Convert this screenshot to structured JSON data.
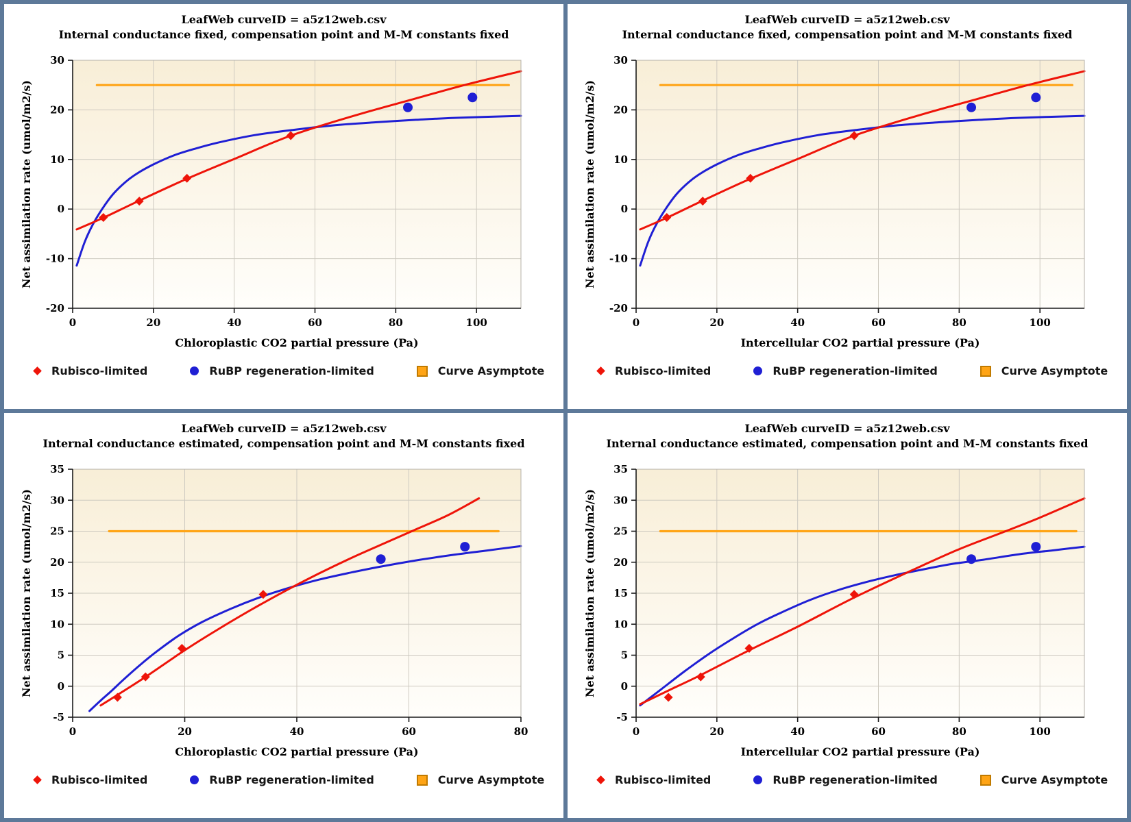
{
  "colors": {
    "red": "#ee1409",
    "blue": "#1f1fd4",
    "orange": "#ffa415",
    "orange_border": "#c07a00",
    "grid": "#cdc9c0",
    "plot_border": "#b4b0a8",
    "axis": "#1a1a1a",
    "bg_top": "#f8eed7",
    "bg_bottom": "#fffefb",
    "frame": "#5d7999"
  },
  "legend": {
    "items": [
      {
        "label": "Rubisco-limited",
        "marker": "diamond",
        "color_key": "red"
      },
      {
        "label": "RuBP regeneration-limited",
        "marker": "circle",
        "color_key": "blue"
      },
      {
        "label": "Curve Asymptote",
        "marker": "square",
        "color_key": "orange"
      }
    ]
  },
  "chart_data": [
    {
      "position": "top-left",
      "type": "line",
      "title": "LeafWeb curveID = a5z12web.csv",
      "subtitle": "Internal conductance fixed, compensation point and M-M constants fixed",
      "xlabel": "Chloroplastic CO2 partial pressure (Pa)",
      "ylabel": "Net assimilation rate (umol/m2/s)",
      "xlim": [
        0,
        111
      ],
      "ylim": [
        -20,
        30
      ],
      "xticks": [
        0,
        20,
        40,
        60,
        80,
        100
      ],
      "yticks": [
        -20,
        -10,
        0,
        10,
        20,
        30
      ],
      "grid": true,
      "legend_position": "bottom-left",
      "asymptote": {
        "y": 25,
        "x_start": 6,
        "x_end": 108
      },
      "curves": [
        {
          "name": "RuBP regeneration-limited model curve",
          "color_key": "blue",
          "points": [
            [
              1,
              -11.4
            ],
            [
              3,
              -6.6
            ],
            [
              5,
              -3.1
            ],
            [
              7.3,
              0
            ],
            [
              10,
              3
            ],
            [
              13,
              5.4
            ],
            [
              16,
              7.2
            ],
            [
              20,
              9
            ],
            [
              25,
              10.8
            ],
            [
              30,
              12.1
            ],
            [
              36,
              13.4
            ],
            [
              45,
              14.9
            ],
            [
              55,
              16
            ],
            [
              65,
              16.9
            ],
            [
              75,
              17.5
            ],
            [
              85,
              18
            ],
            [
              95,
              18.4
            ],
            [
              111,
              18.8
            ]
          ]
        },
        {
          "name": "Rubisco-limited model curve",
          "color_key": "red",
          "points": [
            [
              1,
              -4.1
            ],
            [
              7.5,
              -1.8
            ],
            [
              16,
              1.5
            ],
            [
              28,
              6
            ],
            [
              40,
              10.1
            ],
            [
              54,
              14.8
            ],
            [
              70,
              18.9
            ],
            [
              85,
              22.3
            ],
            [
              97,
              25
            ],
            [
              111,
              27.8
            ]
          ]
        }
      ],
      "scatter": [
        {
          "name": "Rubisco-limited",
          "marker": "diamond",
          "color_key": "red",
          "points": [
            [
              7.6,
              -1.7
            ],
            [
              16.5,
              1.6
            ],
            [
              28.3,
              6.2
            ],
            [
              54,
              14.8
            ]
          ]
        },
        {
          "name": "RuBP regeneration-limited",
          "marker": "circle",
          "color_key": "blue",
          "points": [
            [
              83,
              20.5
            ],
            [
              99,
              22.5
            ]
          ]
        }
      ]
    },
    {
      "position": "top-right",
      "type": "line",
      "title": "LeafWeb curveID = a5z12web.csv",
      "subtitle": "Internal conductance fixed, compensation point and M-M constants fixed",
      "xlabel": "Intercellular CO2 partial pressure (Pa)",
      "ylabel": "Net assimilation rate (umol/m2/s)",
      "xlim": [
        0,
        111
      ],
      "ylim": [
        -20,
        30
      ],
      "xticks": [
        0,
        20,
        40,
        60,
        80,
        100
      ],
      "yticks": [
        -20,
        -10,
        0,
        10,
        20,
        30
      ],
      "grid": true,
      "legend_position": "bottom-left",
      "asymptote": {
        "y": 25,
        "x_start": 6,
        "x_end": 108
      },
      "curves": [
        {
          "name": "RuBP regeneration-limited model curve",
          "color_key": "blue",
          "points": [
            [
              1,
              -11.4
            ],
            [
              3,
              -6.6
            ],
            [
              5,
              -3.1
            ],
            [
              7.3,
              0
            ],
            [
              10,
              3
            ],
            [
              13,
              5.4
            ],
            [
              16,
              7.2
            ],
            [
              20,
              9
            ],
            [
              25,
              10.8
            ],
            [
              30,
              12.1
            ],
            [
              36,
              13.4
            ],
            [
              45,
              14.9
            ],
            [
              55,
              16
            ],
            [
              65,
              16.9
            ],
            [
              75,
              17.5
            ],
            [
              85,
              18
            ],
            [
              95,
              18.4
            ],
            [
              111,
              18.8
            ]
          ]
        },
        {
          "name": "Rubisco-limited model curve",
          "color_key": "red",
          "points": [
            [
              1,
              -4.1
            ],
            [
              7.5,
              -1.8
            ],
            [
              16,
              1.5
            ],
            [
              28,
              6
            ],
            [
              40,
              10.1
            ],
            [
              54,
              14.8
            ],
            [
              70,
              18.9
            ],
            [
              85,
              22.3
            ],
            [
              97,
              25
            ],
            [
              111,
              27.8
            ]
          ]
        }
      ],
      "scatter": [
        {
          "name": "Rubisco-limited",
          "marker": "diamond",
          "color_key": "red",
          "points": [
            [
              7.6,
              -1.7
            ],
            [
              16.5,
              1.6
            ],
            [
              28.3,
              6.2
            ],
            [
              54,
              14.8
            ]
          ]
        },
        {
          "name": "RuBP regeneration-limited",
          "marker": "circle",
          "color_key": "blue",
          "points": [
            [
              83,
              20.5
            ],
            [
              99,
              22.5
            ]
          ]
        }
      ]
    },
    {
      "position": "bottom-left",
      "type": "line",
      "title": "LeafWeb curveID = a5z12web.csv",
      "subtitle": "Internal conductance estimated, compensation point and M-M constants fixed",
      "xlabel": "Chloroplastic CO2 partial pressure (Pa)",
      "ylabel": "Net assimilation rate (umol/m2/s)",
      "xlim": [
        0,
        80
      ],
      "ylim": [
        -5,
        35
      ],
      "xticks": [
        0,
        20,
        40,
        60,
        80
      ],
      "yticks": [
        -5,
        0,
        5,
        10,
        15,
        20,
        25,
        30,
        35
      ],
      "grid": true,
      "legend_position": "bottom-left",
      "asymptote": {
        "y": 25,
        "x_start": 6.5,
        "x_end": 76
      },
      "curves": [
        {
          "name": "RuBP regeneration-limited model curve",
          "color_key": "blue",
          "points": [
            [
              3,
              -4
            ],
            [
              5,
              -2.3
            ],
            [
              7,
              -0.7
            ],
            [
              9,
              1
            ],
            [
              12,
              3.4
            ],
            [
              15,
              5.6
            ],
            [
              19,
              8.2
            ],
            [
              23,
              10.3
            ],
            [
              28,
              12.4
            ],
            [
              33,
              14.2
            ],
            [
              38,
              15.7
            ],
            [
              44,
              17.2
            ],
            [
              50,
              18.4
            ],
            [
              55,
              19.3
            ],
            [
              62,
              20.4
            ],
            [
              68,
              21.2
            ],
            [
              74,
              21.9
            ],
            [
              80,
              22.6
            ]
          ]
        },
        {
          "name": "Rubisco-limited model curve",
          "color_key": "red",
          "points": [
            [
              5,
              -3.1
            ],
            [
              8,
              -1.4
            ],
            [
              13,
              1.5
            ],
            [
              20,
              5.8
            ],
            [
              26,
              9.2
            ],
            [
              32,
              12.4
            ],
            [
              38,
              15.4
            ],
            [
              44,
              18.2
            ],
            [
              50,
              20.8
            ],
            [
              56,
              23.2
            ],
            [
              61,
              25.2
            ],
            [
              67,
              27.6
            ],
            [
              72.5,
              30.3
            ]
          ]
        }
      ],
      "scatter": [
        {
          "name": "Rubisco-limited",
          "marker": "diamond",
          "color_key": "red",
          "points": [
            [
              8,
              -1.8
            ],
            [
              13,
              1.5
            ],
            [
              19.5,
              6.1
            ],
            [
              34,
              14.8
            ]
          ]
        },
        {
          "name": "RuBP regeneration-limited",
          "marker": "circle",
          "color_key": "blue",
          "points": [
            [
              55,
              20.5
            ],
            [
              70,
              22.5
            ]
          ]
        }
      ]
    },
    {
      "position": "bottom-right",
      "type": "line",
      "title": "LeafWeb curveID = a5z12web.csv",
      "subtitle": "Internal conductance estimated, compensation point and M-M constants fixed",
      "xlabel": "Intercellular CO2 partial pressure (Pa)",
      "ylabel": "Net assimilation rate (umol/m2/s)",
      "xlim": [
        0,
        111
      ],
      "ylim": [
        -5,
        35
      ],
      "xticks": [
        0,
        20,
        40,
        60,
        80,
        100
      ],
      "yticks": [
        -5,
        0,
        5,
        10,
        15,
        20,
        25,
        30,
        35
      ],
      "grid": true,
      "legend_position": "bottom-left",
      "asymptote": {
        "y": 25,
        "x_start": 6,
        "x_end": 109
      },
      "curves": [
        {
          "name": "RuBP regeneration-limited model curve",
          "color_key": "blue",
          "points": [
            [
              1,
              -3.1
            ],
            [
              6,
              -0.6
            ],
            [
              12,
              2.4
            ],
            [
              18,
              5.2
            ],
            [
              24,
              7.7
            ],
            [
              30,
              10
            ],
            [
              36,
              11.9
            ],
            [
              43,
              13.9
            ],
            [
              50,
              15.5
            ],
            [
              57,
              16.8
            ],
            [
              64,
              17.9
            ],
            [
              70,
              18.7
            ],
            [
              78,
              19.7
            ],
            [
              86,
              20.4
            ],
            [
              95,
              21.3
            ],
            [
              103,
              21.9
            ],
            [
              111,
              22.5
            ]
          ]
        },
        {
          "name": "Rubisco-limited model curve",
          "color_key": "red",
          "points": [
            [
              1,
              -2.9
            ],
            [
              8,
              -0.7
            ],
            [
              16,
              1.8
            ],
            [
              28,
              5.8
            ],
            [
              40,
              9.6
            ],
            [
              54,
              14.3
            ],
            [
              68,
              18.6
            ],
            [
              80,
              22.1
            ],
            [
              91.5,
              25
            ],
            [
              100,
              27.2
            ],
            [
              111,
              30.3
            ]
          ]
        }
      ],
      "scatter": [
        {
          "name": "Rubisco-limited",
          "marker": "diamond",
          "color_key": "red",
          "points": [
            [
              8,
              -1.8
            ],
            [
              16,
              1.5
            ],
            [
              28,
              6.1
            ],
            [
              54,
              14.8
            ]
          ]
        },
        {
          "name": "RuBP regeneration-limited",
          "marker": "circle",
          "color_key": "blue",
          "points": [
            [
              83,
              20.5
            ],
            [
              99,
              22.5
            ]
          ]
        }
      ]
    }
  ]
}
